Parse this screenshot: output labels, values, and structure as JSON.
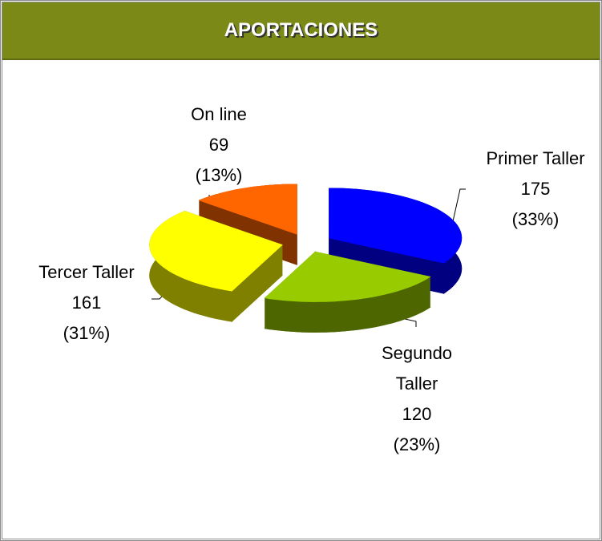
{
  "chart_data": {
    "type": "pie",
    "title": "APORTACIONES",
    "categories": [
      "Primer Taller",
      "Segundo Taller",
      "Tercer Taller",
      "On line"
    ],
    "values": [
      175,
      120,
      161,
      69
    ],
    "percent_labels": [
      "(33%)",
      "(23%)",
      "(31%)",
      "(13%)"
    ],
    "colors": [
      "#0000ff",
      "#99cc00",
      "#ffff00",
      "#ff6600"
    ]
  }
}
